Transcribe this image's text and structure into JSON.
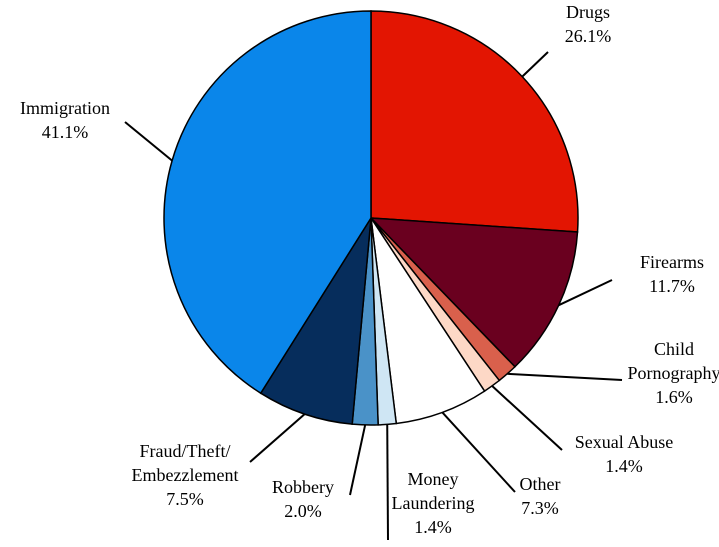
{
  "chart_data": {
    "type": "pie",
    "categories": [
      "Drugs",
      "Firearms",
      "Child\nPornography",
      "Sexual Abuse",
      "Other",
      "Money\nLaundering",
      "Robbery",
      "Fraud/Theft/\nEmbezzlement",
      "Immigration"
    ],
    "values": [
      26.1,
      11.7,
      1.6,
      1.4,
      7.3,
      1.4,
      2.0,
      7.5,
      41.1
    ],
    "value_labels": [
      "26.1%",
      "11.7%",
      "1.6%",
      "1.4%",
      "7.3%",
      "1.4%",
      "2.0%",
      "7.5%",
      "41.1%"
    ],
    "colors": [
      "#e31502",
      "#6a001f",
      "#d9604c",
      "#fdd8c6",
      "#ffffff",
      "#cfe6f4",
      "#4a92c8",
      "#062d5c",
      "#0a86ea"
    ]
  }
}
